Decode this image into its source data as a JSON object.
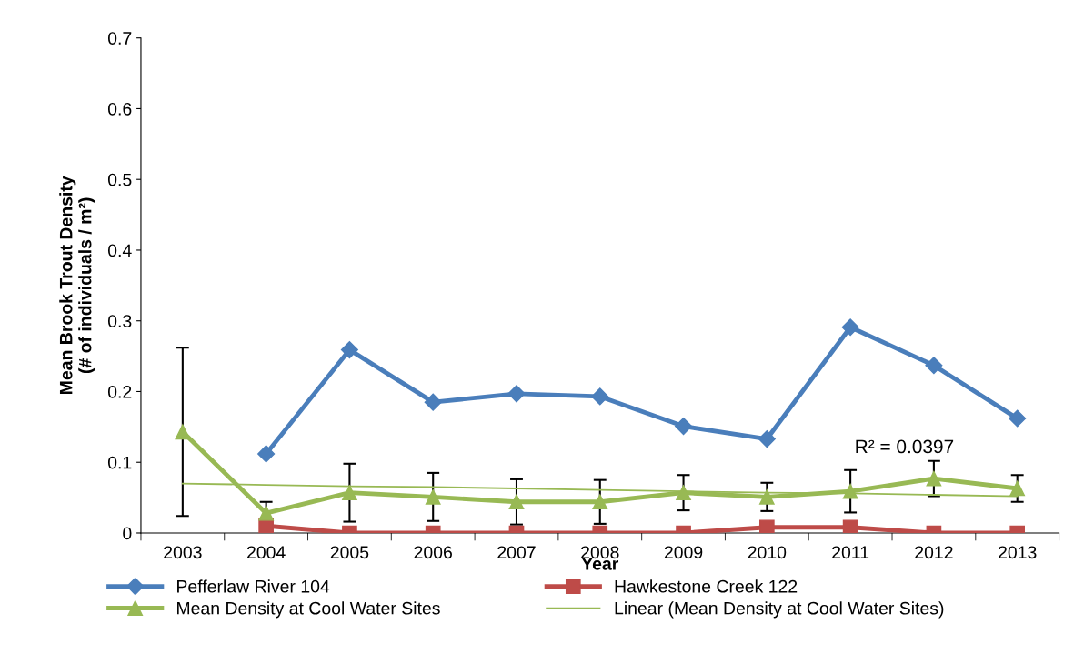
{
  "chart_data": {
    "type": "line",
    "xlabel": "Year",
    "ylabel": "Mean Brook Trout Density\n(# of individuals / m²)",
    "categories": [
      "2003",
      "2004",
      "2005",
      "2006",
      "2007",
      "2008",
      "2009",
      "2010",
      "2011",
      "2012",
      "2013"
    ],
    "ylim": [
      0,
      0.7
    ],
    "yticks": [
      0,
      0.1,
      0.2,
      0.3,
      0.4,
      0.5,
      0.6,
      0.7
    ],
    "grid": false,
    "legend": "bottom",
    "series": [
      {
        "name": "Pefferlaw River 104",
        "color": "#4a7ebb",
        "marker": "diamond",
        "values": [
          null,
          0.112,
          0.259,
          0.185,
          0.197,
          0.193,
          0.151,
          0.133,
          0.291,
          0.237,
          0.162
        ]
      },
      {
        "name": "Hawkestone Creek 122",
        "color": "#be4b48",
        "marker": "square",
        "values": [
          null,
          0.01,
          0,
          0,
          0,
          0,
          0,
          0.008,
          0.008,
          0,
          0
        ]
      },
      {
        "name": "Mean Density at Cool Water Sites",
        "color": "#98b954",
        "marker": "triangle",
        "values": [
          0.143,
          0.028,
          0.057,
          0.051,
          0.044,
          0.044,
          0.057,
          0.051,
          0.059,
          0.077,
          0.063
        ],
        "errors": [
          0.119,
          0.016,
          0.041,
          0.034,
          0.032,
          0.031,
          0.025,
          0.02,
          0.03,
          0.025,
          0.019
        ]
      },
      {
        "name": "Linear (Mean Density at Cool Water Sites)",
        "type": "line",
        "color": "#98b954",
        "marker": "none",
        "values": [
          0.07,
          0.068,
          0.066,
          0.065,
          0.063,
          0.061,
          0.059,
          0.057,
          0.056,
          0.054,
          0.052
        ]
      }
    ],
    "annotations": [
      "R² = 0.0397"
    ]
  }
}
